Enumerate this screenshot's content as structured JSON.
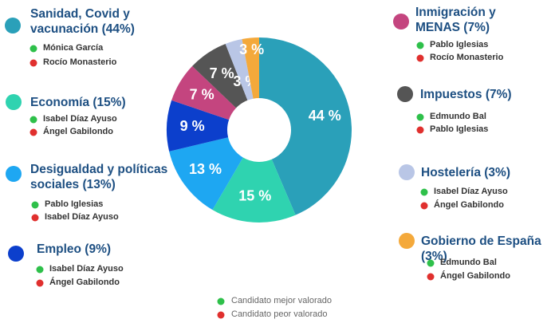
{
  "chart_data": {
    "type": "donut",
    "categories": [
      "Sanidad, Covid y vacunación (44%)",
      "Desigualdad y políticas sociales (13%)",
      "Economía (15%)",
      "Empleo (9%)",
      "Inmigración y MENAS (7%)",
      "Impuestos (7%)",
      "Hostelería (3%)",
      "Gobierno de España (3%)"
    ],
    "values": [
      44,
      13,
      15,
      9,
      7,
      7,
      3,
      3
    ],
    "value_labels": [
      "44 %",
      "13 %",
      "15 %",
      "9 %",
      "7 %",
      "7 %",
      "3 %",
      "3 %"
    ],
    "colors": [
      "#2aa0b9",
      "#1ea7f2",
      "#2fd3b0",
      "#0c3fcc",
      "#c4457f",
      "#555555",
      "#b9c6e6",
      "#f4a93b"
    ],
    "candidates": [
      {
        "best": "Mónica García",
        "worst": "Rocío Monasterio"
      },
      {
        "best": "Pablo Iglesias",
        "worst": "Isabel Díaz Ayuso"
      },
      {
        "best": "Isabel Díaz Ayuso",
        "worst": "Ángel Gabilondo"
      },
      {
        "best": "Isabel Díaz Ayuso",
        "worst": "Ángel Gabilondo"
      },
      {
        "best": "Pablo Iglesias",
        "worst": "Rocío Monasterio"
      },
      {
        "best": "Edmundo Bal",
        "worst": "Pablo Iglesias"
      },
      {
        "best": "Isabel Díaz Ayuso",
        "worst": "Ángel Gabilondo"
      },
      {
        "best": "Edmundo Bal",
        "worst": "Ángel Gabilondo"
      }
    ],
    "legend": {
      "best": "Candidato mejor valorado",
      "worst": "Candidato peor valorado",
      "best_color": "#2ec04a",
      "worst_color": "#e0302e"
    }
  }
}
